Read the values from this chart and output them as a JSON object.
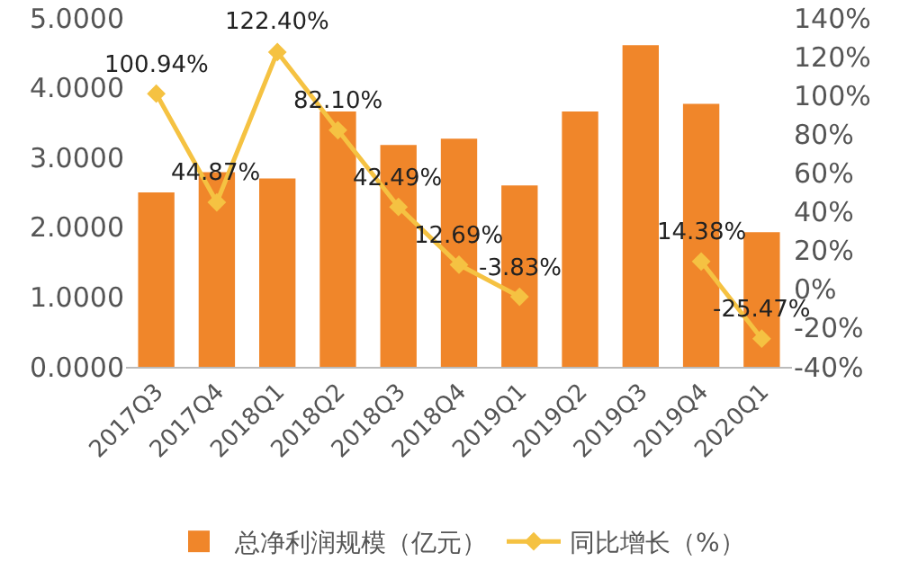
{
  "chart_data": {
    "type": "bar",
    "categories": [
      "2017Q3",
      "2017Q4",
      "2018Q1",
      "2018Q2",
      "2018Q3",
      "2018Q4",
      "2019Q1",
      "2019Q2",
      "2019Q3",
      "2019Q4",
      "2020Q1"
    ],
    "series": [
      {
        "name": "总净利润规模（亿元）",
        "color": "#f0862a",
        "values": [
          2.5,
          2.79,
          2.7,
          3.66,
          3.18,
          3.27,
          2.6,
          3.66,
          4.61,
          3.77,
          1.93
        ]
      },
      {
        "name": "同比增长（%）",
        "type": "line",
        "axis": "y2",
        "color": "#f5c242",
        "marker": "diamond",
        "values": [
          100.94,
          44.87,
          122.4,
          82.1,
          42.49,
          12.69,
          -3.83,
          null,
          null,
          14.38,
          -25.47
        ],
        "value_labels": [
          "100.94%",
          "44.87%",
          "122.40%",
          "82.10%",
          "42.49%",
          "12.69%",
          "-3.83%",
          null,
          null,
          "14.38%",
          "-25.47%"
        ]
      }
    ],
    "ylim": [
      0,
      5
    ],
    "yticks": [
      {
        "value": 0,
        "label": "0.0000"
      },
      {
        "value": 1,
        "label": "1.0000"
      },
      {
        "value": 2,
        "label": "2.0000"
      },
      {
        "value": 3,
        "label": "3.0000"
      },
      {
        "value": 4,
        "label": "4.0000"
      },
      {
        "value": 5,
        "label": "5.0000"
      }
    ],
    "y2lim": [
      -40,
      140
    ],
    "y2ticks": [
      {
        "value": -40,
        "label": "-40%"
      },
      {
        "value": -20,
        "label": "-20%"
      },
      {
        "value": 0,
        "label": "0%"
      },
      {
        "value": 20,
        "label": "20%"
      },
      {
        "value": 40,
        "label": "40%"
      },
      {
        "value": 60,
        "label": "60%"
      },
      {
        "value": 80,
        "label": "80%"
      },
      {
        "value": 100,
        "label": "100%"
      },
      {
        "value": 120,
        "label": "120%"
      },
      {
        "value": 140,
        "label": "140%"
      }
    ],
    "grid": false,
    "legend": "bottom"
  }
}
